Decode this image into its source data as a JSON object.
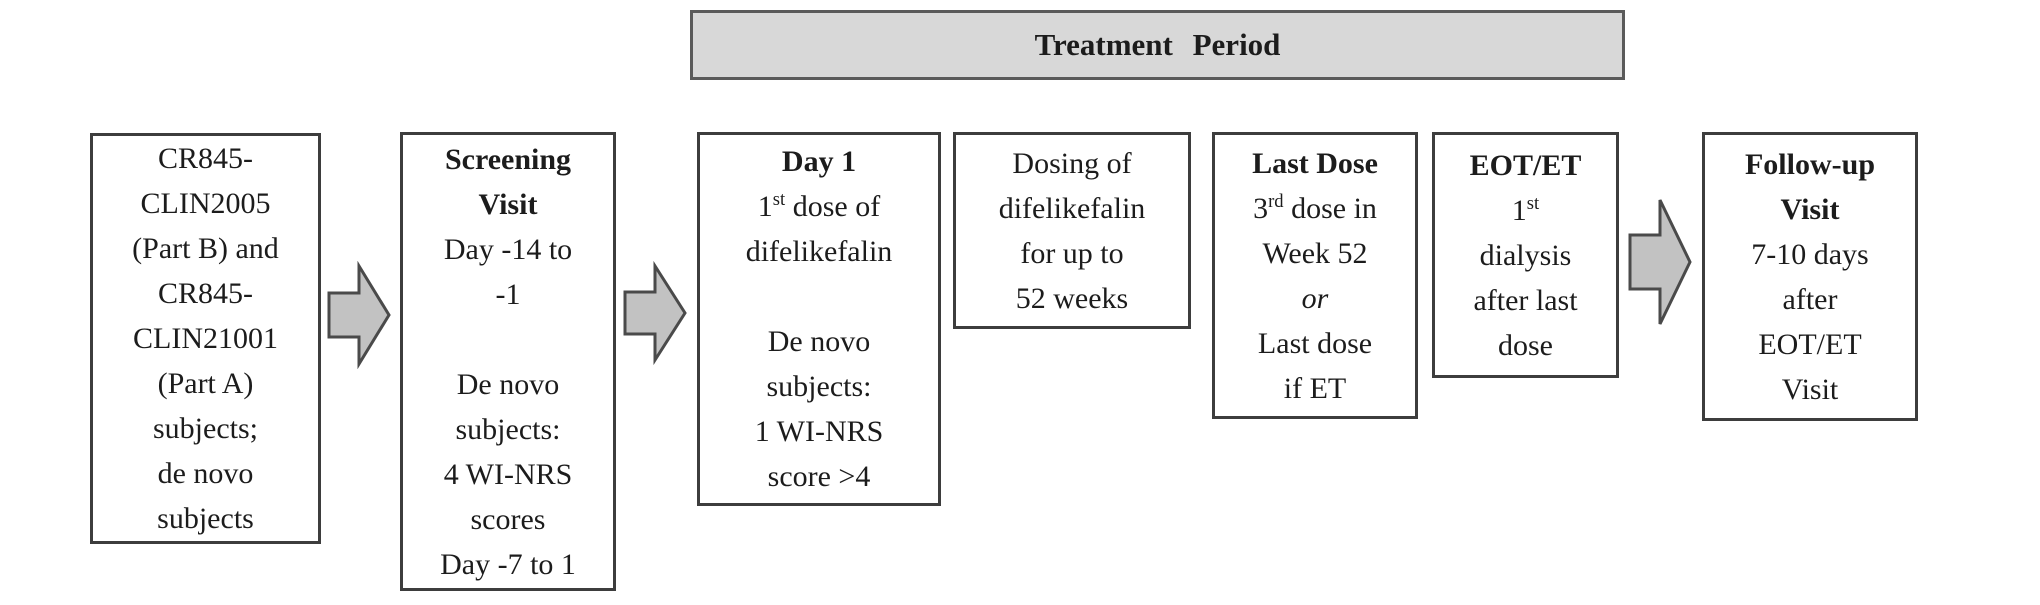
{
  "header": {
    "label": "Treatment Period"
  },
  "boxes": {
    "source": {
      "name": "prior-study-subjects",
      "lines": [
        [
          {
            "t": "CR845-"
          }
        ],
        [
          {
            "t": "CLIN2005"
          }
        ],
        [
          {
            "t": "(Part B) and"
          }
        ],
        [
          {
            "t": "CR845-"
          }
        ],
        [
          {
            "t": "CLIN21001"
          }
        ],
        [
          {
            "t": "(Part A)"
          }
        ],
        [
          {
            "t": "subjects;"
          }
        ],
        [
          {
            "t": "de novo"
          }
        ],
        [
          {
            "t": "subjects"
          }
        ]
      ]
    },
    "screening": {
      "name": "screening-visit",
      "lines": [
        [
          {
            "t": "Screening",
            "b": 1
          }
        ],
        [
          {
            "t": "Visit",
            "b": 1
          }
        ],
        [
          {
            "t": "Day -14 to"
          }
        ],
        [
          {
            "t": "-1"
          }
        ],
        [],
        [
          {
            "t": "De novo"
          }
        ],
        [
          {
            "t": "subjects:"
          }
        ],
        [
          {
            "t": "4 WI-NRS"
          }
        ],
        [
          {
            "t": "scores"
          }
        ],
        [
          {
            "t": "Day -7 to 1"
          }
        ]
      ]
    },
    "day1": {
      "name": "day-1-first-dose",
      "lines": [
        [
          {
            "t": "Day 1",
            "b": 1
          }
        ],
        [
          {
            "t": "1"
          },
          {
            "t": "st",
            "sup": 1
          },
          {
            "t": " dose of"
          }
        ],
        [
          {
            "t": "difelikefalin"
          }
        ],
        [],
        [
          {
            "t": "De novo"
          }
        ],
        [
          {
            "t": "subjects:"
          }
        ],
        [
          {
            "t": "1 WI-NRS"
          }
        ],
        [
          {
            "t": "score >4"
          }
        ]
      ]
    },
    "dosing": {
      "name": "dosing-period",
      "lines": [
        [
          {
            "t": "Dosing of"
          }
        ],
        [
          {
            "t": "difelikefalin"
          }
        ],
        [
          {
            "t": "for up to"
          }
        ],
        [
          {
            "t": "52 weeks"
          }
        ]
      ]
    },
    "last_dose": {
      "name": "last-dose",
      "lines": [
        [
          {
            "t": "Last Dose",
            "b": 1
          }
        ],
        [
          {
            "t": "3"
          },
          {
            "t": "rd",
            "sup": 1
          },
          {
            "t": " dose in"
          }
        ],
        [
          {
            "t": "Week 52"
          }
        ],
        [
          {
            "t": "or",
            "i": 1
          }
        ],
        [
          {
            "t": "Last dose"
          }
        ],
        [
          {
            "t": "if ET"
          }
        ]
      ]
    },
    "eot_et": {
      "name": "eot-et",
      "lines": [
        [
          {
            "t": "EOT/ET",
            "b": 1
          }
        ],
        [
          {
            "t": "1"
          },
          {
            "t": "st",
            "sup": 1
          }
        ],
        [
          {
            "t": "dialysis"
          }
        ],
        [
          {
            "t": "after last"
          }
        ],
        [
          {
            "t": "dose"
          }
        ]
      ]
    },
    "follow_up": {
      "name": "follow-up-visit",
      "lines": [
        [
          {
            "t": "Follow-up",
            "b": 1
          }
        ],
        [
          {
            "t": "Visit",
            "b": 1
          }
        ],
        [
          {
            "t": "7-10 days"
          }
        ],
        [
          {
            "t": "after"
          }
        ],
        [
          {
            "t": "EOT/ET"
          }
        ],
        [
          {
            "t": "Visit"
          }
        ]
      ]
    }
  },
  "arrows": [
    {
      "name": "right-block-arrow"
    },
    {
      "name": "right-block-arrow"
    },
    {
      "name": "right-block-arrow"
    }
  ],
  "colors": {
    "bar_fill": "#d8d8d8",
    "bar_border": "#5a5a5a",
    "box_border": "#3d3d3d",
    "arrow_fill": "#c2c2c2",
    "arrow_border": "#4a4a4a",
    "text": "#1c1c1c"
  }
}
